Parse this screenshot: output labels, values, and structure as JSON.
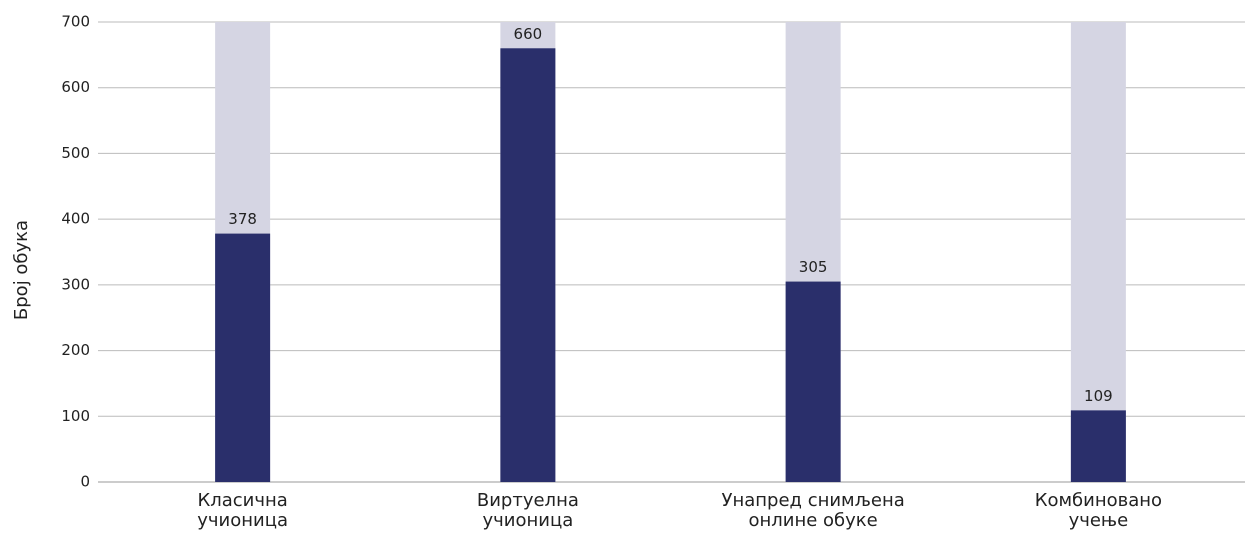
{
  "chart_data": {
    "type": "bar",
    "y_label": "Број обука",
    "categories": [
      "Класична\nучионица",
      "Виртуелна\nучионица",
      "Унапред снимљена\nонлине обуке",
      "Комбиновано\nучење"
    ],
    "values": [
      378,
      660,
      305,
      109
    ],
    "color": "#2a2f6b",
    "background_color": "#d5d5e3",
    "ylim": [
      0,
      700
    ],
    "yticks": [
      0,
      100,
      200,
      300,
      400,
      500,
      600,
      700
    ],
    "grid": true
  }
}
